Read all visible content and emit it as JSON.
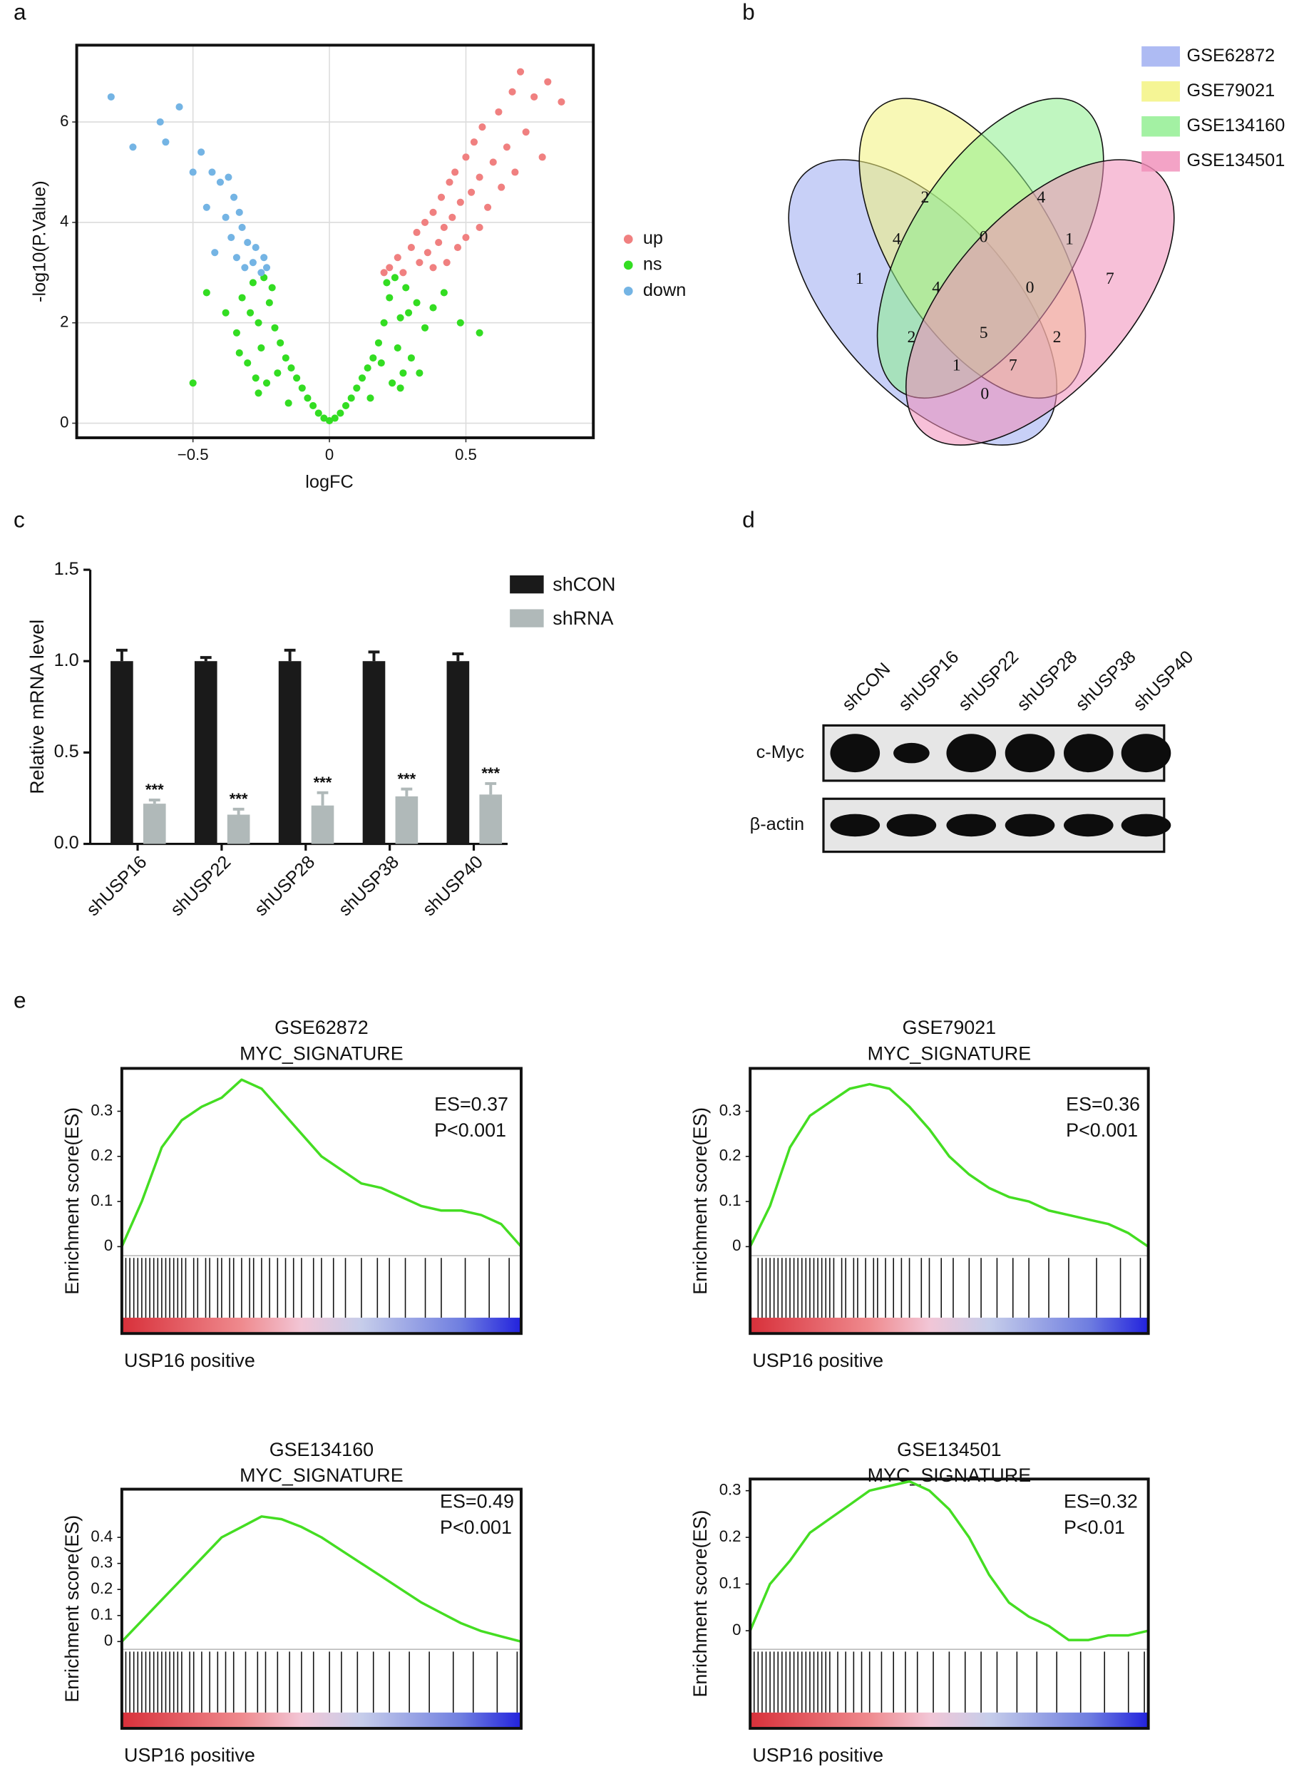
{
  "panel_labels": [
    "a",
    "b",
    "c",
    "d",
    "e"
  ],
  "chart_data": [
    {
      "type": "scatter",
      "xlabel": "logFC",
      "ylabel": "-log10(P.Value)",
      "xlim": [
        -0.926,
        0.967
      ],
      "ylim": [
        -0.29,
        7.53
      ],
      "xticks": [
        {
          "value": -0.5,
          "label": "−0.5"
        },
        0,
        0.5
      ],
      "yticks": [
        0,
        2,
        4,
        6
      ],
      "grid": true,
      "series": [
        {
          "name": "up",
          "color": "#f08080",
          "x": [
            0.2,
            0.22,
            0.25,
            0.27,
            0.3,
            0.32,
            0.33,
            0.35,
            0.36,
            0.38,
            0.4,
            0.41,
            0.42,
            0.44,
            0.45,
            0.46,
            0.48,
            0.5,
            0.5,
            0.52,
            0.53,
            0.55,
            0.56,
            0.58,
            0.6,
            0.62,
            0.63,
            0.65,
            0.67,
            0.68,
            0.7,
            0.72,
            0.75,
            0.78,
            0.8,
            0.85,
            0.38,
            0.43,
            0.47,
            0.55
          ],
          "values": [
            3.0,
            3.1,
            3.3,
            3.0,
            3.5,
            3.8,
            3.2,
            4.0,
            3.4,
            4.2,
            3.6,
            4.5,
            3.9,
            4.8,
            4.1,
            5.0,
            4.4,
            5.3,
            3.7,
            4.6,
            5.6,
            4.9,
            5.9,
            4.3,
            5.2,
            6.2,
            4.7,
            5.5,
            6.6,
            5.0,
            7.0,
            5.8,
            6.5,
            5.3,
            6.8,
            6.4,
            3.1,
            3.2,
            3.5,
            3.9
          ]
        },
        {
          "name": "ns",
          "color": "#33dd22",
          "x": [
            -0.45,
            -0.38,
            -0.34,
            -0.32,
            -0.3,
            -0.28,
            -0.27,
            -0.26,
            -0.25,
            -0.24,
            -0.23,
            -0.22,
            -0.2,
            -0.18,
            -0.16,
            -0.14,
            -0.12,
            -0.1,
            -0.08,
            -0.06,
            -0.04,
            -0.02,
            0,
            0.02,
            0.04,
            0.06,
            0.08,
            0.1,
            0.12,
            0.14,
            0.16,
            0.18,
            0.2,
            0.22,
            0.23,
            0.24,
            0.25,
            0.26,
            0.27,
            0.28,
            0.3,
            0.32,
            0.35,
            0.38,
            0.42,
            0.48,
            -0.33,
            -0.29,
            -0.21,
            -0.19,
            0.21,
            0.19,
            0.29,
            0.33,
            -0.26,
            0.26,
            -0.15,
            0.15,
            -0.5,
            0.55
          ],
          "values": [
            2.6,
            2.2,
            1.8,
            2.5,
            1.2,
            2.8,
            0.9,
            2.0,
            1.5,
            2.9,
            0.8,
            2.4,
            1.9,
            1.6,
            1.3,
            1.1,
            0.9,
            0.7,
            0.5,
            0.35,
            0.2,
            0.1,
            0.05,
            0.1,
            0.2,
            0.35,
            0.5,
            0.7,
            0.9,
            1.1,
            1.3,
            1.6,
            2.0,
            2.5,
            0.8,
            2.9,
            1.5,
            2.1,
            1.0,
            2.7,
            1.3,
            2.4,
            1.9,
            2.3,
            2.6,
            2.0,
            1.4,
            2.2,
            2.7,
            1.0,
            2.8,
            1.2,
            2.2,
            1.0,
            0.6,
            0.7,
            0.4,
            0.5,
            0.8,
            1.8
          ]
        },
        {
          "name": "down",
          "color": "#74b4e4",
          "x": [
            -0.8,
            -0.72,
            -0.62,
            -0.6,
            -0.55,
            -0.5,
            -0.47,
            -0.45,
            -0.43,
            -0.42,
            -0.4,
            -0.38,
            -0.37,
            -0.36,
            -0.35,
            -0.34,
            -0.33,
            -0.32,
            -0.31,
            -0.3,
            -0.28,
            -0.27,
            -0.25,
            -0.24,
            -0.23
          ],
          "values": [
            6.5,
            5.5,
            6.0,
            5.6,
            6.3,
            5.0,
            5.4,
            4.3,
            5.0,
            3.4,
            4.8,
            4.1,
            4.9,
            3.7,
            4.5,
            3.3,
            4.2,
            3.9,
            3.1,
            3.6,
            3.2,
            3.5,
            3.0,
            3.3,
            3.1
          ]
        }
      ]
    },
    {
      "type": "venn",
      "series": [
        {
          "name": "GSE62872",
          "color": "#9aaaf0"
        },
        {
          "name": "GSE79021",
          "color": "#f2f27a"
        },
        {
          "name": "GSE134160",
          "color": "#8cee8c"
        },
        {
          "name": "GSE134501",
          "color": "#f08cb8"
        }
      ],
      "values": [
        1,
        2,
        4,
        4,
        0,
        1,
        7,
        4,
        0,
        5,
        2,
        2,
        1,
        7,
        0
      ]
    },
    {
      "type": "bar",
      "ylabel": "Relative mRNA level",
      "categories": [
        "shUSP16",
        "shUSP22",
        "shUSP28",
        "shUSP38",
        "shUSP40"
      ],
      "ylim": [
        0,
        1.5
      ],
      "yticks": [
        {
          "value": 0,
          "label": "0.0"
        },
        0.5,
        {
          "value": 1,
          "label": "1.0"
        },
        1.5
      ],
      "series": [
        {
          "name": "shCON",
          "color": "#1a1a1a",
          "values": [
            1.0,
            1.0,
            1.0,
            1.0,
            1.0
          ],
          "errors": [
            0.06,
            0.02,
            0.06,
            0.05,
            0.04
          ]
        },
        {
          "name": "shRNA",
          "color": "#b0b9b9",
          "values": [
            0.22,
            0.16,
            0.21,
            0.26,
            0.27
          ],
          "errors": [
            0.02,
            0.03,
            0.07,
            0.04,
            0.06
          ],
          "annotations": [
            "***",
            "***",
            "***",
            "***",
            "***"
          ]
        }
      ]
    },
    {
      "type": "line",
      "title": "GSE62872",
      "subtitle": "MYC_SIGNATURE",
      "annotations": [
        "ES=0.37",
        "P<0.001"
      ],
      "xlabel": "USP16 positive",
      "ylabel": "Enrichment score(ES)",
      "xlim": [
        0,
        100
      ],
      "ylim": [
        -0.02,
        0.395
      ],
      "yticks": [
        0,
        0.1,
        0.2,
        0.3
      ],
      "color": "#44dd22",
      "x": [
        0,
        5,
        10,
        15,
        20,
        25,
        30,
        35,
        40,
        45,
        50,
        55,
        60,
        65,
        70,
        75,
        80,
        85,
        90,
        95,
        100
      ],
      "values": [
        0,
        0.1,
        0.22,
        0.28,
        0.31,
        0.33,
        0.37,
        0.35,
        0.3,
        0.25,
        0.2,
        0.17,
        0.14,
        0.13,
        0.11,
        0.09,
        0.08,
        0.08,
        0.07,
        0.05,
        0
      ],
      "hits": [
        1,
        2,
        3,
        4,
        5,
        6,
        7,
        8,
        9,
        10,
        11,
        12,
        13,
        14,
        15,
        16,
        18,
        19,
        21,
        22,
        24,
        25,
        27,
        28,
        30,
        32,
        33,
        35,
        37,
        39,
        41,
        43,
        45,
        48,
        50,
        53,
        56,
        60,
        64,
        67,
        71,
        76,
        80,
        86,
        92,
        97
      ]
    },
    {
      "type": "line",
      "title": "GSE79021",
      "subtitle": "MYC_SIGNATURE",
      "annotations": [
        "ES=0.36",
        "P<0.001"
      ],
      "xlabel": "USP16 positive",
      "ylabel": "Enrichment score(ES)",
      "xlim": [
        0,
        100
      ],
      "ylim": [
        -0.02,
        0.395
      ],
      "yticks": [
        0,
        0.1,
        0.2,
        0.3
      ],
      "color": "#44dd22",
      "x": [
        0,
        5,
        10,
        15,
        20,
        25,
        30,
        35,
        40,
        45,
        50,
        55,
        60,
        65,
        70,
        75,
        80,
        85,
        90,
        95,
        100
      ],
      "values": [
        0,
        0.09,
        0.22,
        0.29,
        0.32,
        0.35,
        0.36,
        0.35,
        0.31,
        0.26,
        0.2,
        0.16,
        0.13,
        0.11,
        0.1,
        0.08,
        0.07,
        0.06,
        0.05,
        0.03,
        0
      ],
      "hits": [
        2,
        3,
        4,
        5,
        6,
        7,
        8,
        9,
        10,
        11,
        12,
        13,
        14,
        15,
        16,
        17,
        18,
        19,
        20,
        21,
        23,
        24,
        26,
        27,
        29,
        31,
        32,
        34,
        36,
        38,
        40,
        43,
        45,
        48,
        51,
        55,
        58,
        62,
        66,
        70,
        75,
        80,
        87,
        93,
        98
      ]
    },
    {
      "type": "line",
      "title": "GSE134160",
      "subtitle": "MYC_SIGNATURE",
      "annotations": [
        "ES=0.49",
        "P<0.001"
      ],
      "xlabel": "USP16 positive",
      "ylabel": "Enrichment score(ES)",
      "xlim": [
        0,
        100
      ],
      "ylim": [
        -0.03,
        0.585
      ],
      "yticks": [
        0,
        0.1,
        0.2,
        0.3,
        0.4
      ],
      "color": "#44dd22",
      "x": [
        0,
        5,
        10,
        15,
        20,
        25,
        30,
        35,
        40,
        45,
        50,
        55,
        60,
        65,
        70,
        75,
        80,
        85,
        90,
        95,
        100
      ],
      "values": [
        0,
        0.08,
        0.16,
        0.24,
        0.32,
        0.4,
        0.44,
        0.48,
        0.47,
        0.44,
        0.4,
        0.35,
        0.3,
        0.25,
        0.2,
        0.15,
        0.11,
        0.07,
        0.04,
        0.02,
        0
      ],
      "hits": [
        1,
        2,
        3,
        4,
        5,
        6,
        7,
        8,
        9,
        10,
        11,
        12,
        13,
        14,
        15,
        17,
        18,
        20,
        22,
        24,
        26,
        28,
        31,
        34,
        36,
        39,
        42,
        45,
        48,
        52,
        55,
        59,
        63,
        67,
        72,
        77,
        83,
        88,
        94,
        99
      ]
    },
    {
      "type": "line",
      "title": "GSE134501",
      "subtitle": "MYC_SIGNATURE",
      "annotations": [
        "ES=0.32",
        "P<0.01"
      ],
      "xlabel": "USP16 positive",
      "ylabel": "Enrichment score(ES)",
      "xlim": [
        0,
        100
      ],
      "ylim": [
        -0.04,
        0.325
      ],
      "yticks": [
        0,
        0.1,
        0.2,
        0.3
      ],
      "color": "#44dd22",
      "x": [
        0,
        5,
        10,
        15,
        20,
        25,
        30,
        35,
        40,
        45,
        50,
        55,
        60,
        65,
        70,
        75,
        80,
        85,
        90,
        95,
        100
      ],
      "values": [
        0,
        0.1,
        0.15,
        0.21,
        0.24,
        0.27,
        0.3,
        0.31,
        0.32,
        0.3,
        0.26,
        0.2,
        0.12,
        0.06,
        0.03,
        0.01,
        -0.02,
        -0.02,
        -0.01,
        -0.01,
        0
      ],
      "hits": [
        1,
        2,
        3,
        4,
        5,
        6,
        7,
        8,
        9,
        10,
        11,
        12,
        13,
        14,
        15,
        16,
        17,
        18,
        19,
        20,
        22,
        24,
        26,
        28,
        30,
        33,
        36,
        39,
        42,
        46,
        50,
        54,
        58,
        62,
        67,
        72,
        77,
        83,
        89,
        95,
        99
      ]
    }
  ],
  "western_blot": {
    "lanes": [
      "shCON",
      "shUSP16",
      "shUSP22",
      "shUSP28",
      "shUSP38",
      "shUSP40"
    ],
    "rows": [
      "c-Myc",
      "β-actin"
    ]
  }
}
